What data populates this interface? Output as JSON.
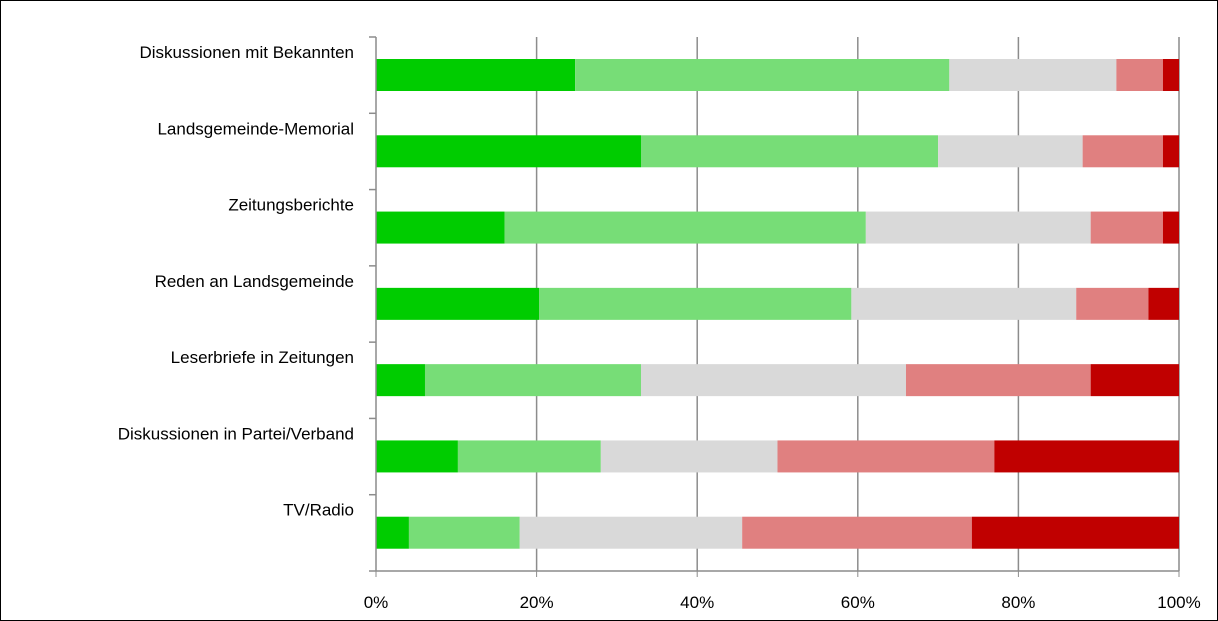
{
  "chart_data": {
    "type": "bar",
    "orientation": "horizontal",
    "stacked": "percent",
    "categories": [
      "Diskussionen mit Bekannten",
      "Landsgemeinde-Memorial",
      "Zeitungsberichte",
      "Reden an Landsgemeinde",
      "Leserbriefe in Zeitungen",
      "Diskussionen in Partei/Verband",
      "TV/Radio"
    ],
    "series": [
      {
        "values": [
          24.8,
          33.0,
          16.0,
          20.3,
          6.1,
          10.2,
          4.1
        ],
        "color": "#00cc00"
      },
      {
        "values": [
          46.6,
          37.0,
          45.0,
          38.9,
          26.9,
          17.8,
          13.8
        ],
        "color": "#77dd77"
      },
      {
        "values": [
          20.8,
          18.0,
          28.0,
          28.0,
          33.0,
          22.0,
          27.7
        ],
        "color": "#d9d9d9"
      },
      {
        "values": [
          5.8,
          10.0,
          9.0,
          9.0,
          23.0,
          27.0,
          28.6
        ],
        "color": "#e08080"
      },
      {
        "values": [
          2.0,
          2.0,
          2.0,
          3.8,
          11.0,
          23.0,
          25.8
        ],
        "color": "#c00000"
      }
    ],
    "x_ticks": [
      "0%",
      "20%",
      "40%",
      "60%",
      "80%",
      "100%"
    ],
    "xlim": [
      0,
      100
    ],
    "grid": true,
    "legend": "none",
    "title": "",
    "xlabel": "",
    "ylabel": ""
  }
}
